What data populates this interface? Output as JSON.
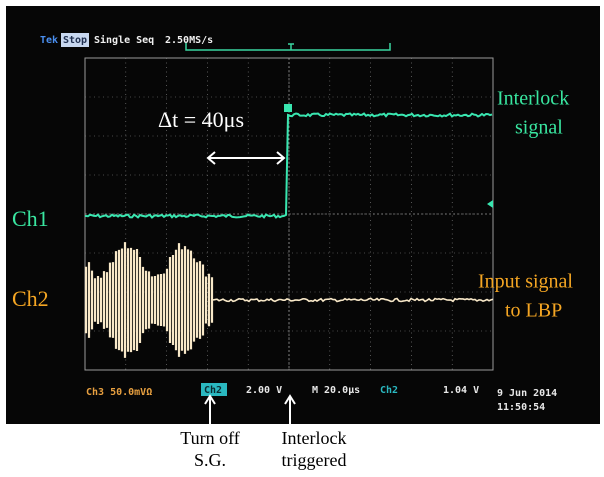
{
  "header": {
    "brand": "Tek",
    "status": "Stop",
    "mode": "Single Seq",
    "rate": "2.50MS/s"
  },
  "annotations": {
    "delta_t": "Δt = 40μs",
    "ch1": "Ch1",
    "ch2": "Ch2",
    "interlock_signal": [
      "Interlock",
      "signal"
    ],
    "input_signal": [
      "Input signal",
      "to LBP"
    ],
    "turn_off": [
      "Turn off",
      "S.G."
    ],
    "interlock_triggered": [
      "Interlock",
      "triggered"
    ]
  },
  "readout": {
    "ch3": "Ch3 50.0mVΩ",
    "ch2_box": "Ch2",
    "ch2_scale": "2.00 V",
    "timebase": "M 20.0μs",
    "trigger_source": "Ch2",
    "trigger_level": "1.04 V",
    "date": "9 Jun 2014",
    "time": "11:50:54"
  }
}
